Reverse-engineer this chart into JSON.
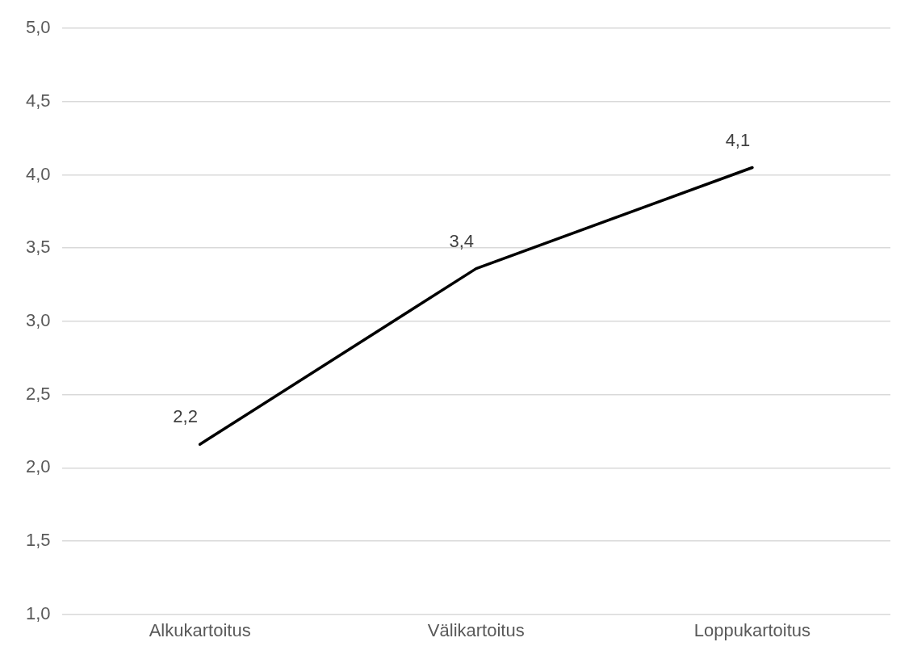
{
  "chart_data": {
    "type": "line",
    "categories": [
      "Alkukartoitus",
      "Välikartoitus",
      "Loppukartoitus"
    ],
    "series": [
      {
        "color": "#000000",
        "values": [
          2.16,
          3.36,
          4.05
        ],
        "value_labels": [
          "2,2",
          "3,4",
          "4,1"
        ]
      }
    ],
    "ylim": [
      1,
      5
    ],
    "yticks": [
      {
        "value": 1,
        "label": "1,0"
      },
      {
        "value": 1.5,
        "label": "1,5"
      },
      {
        "value": 2,
        "label": "2,0"
      },
      {
        "value": 2.5,
        "label": "2,5"
      },
      {
        "value": 3,
        "label": "3,0"
      },
      {
        "value": 3.5,
        "label": "3,5"
      },
      {
        "value": 4,
        "label": "4,0"
      },
      {
        "value": 4.5,
        "label": "4,5"
      },
      {
        "value": 5,
        "label": "5,0"
      }
    ],
    "grid": "y",
    "legend": false,
    "marker": "none",
    "line_style": "solid"
  }
}
